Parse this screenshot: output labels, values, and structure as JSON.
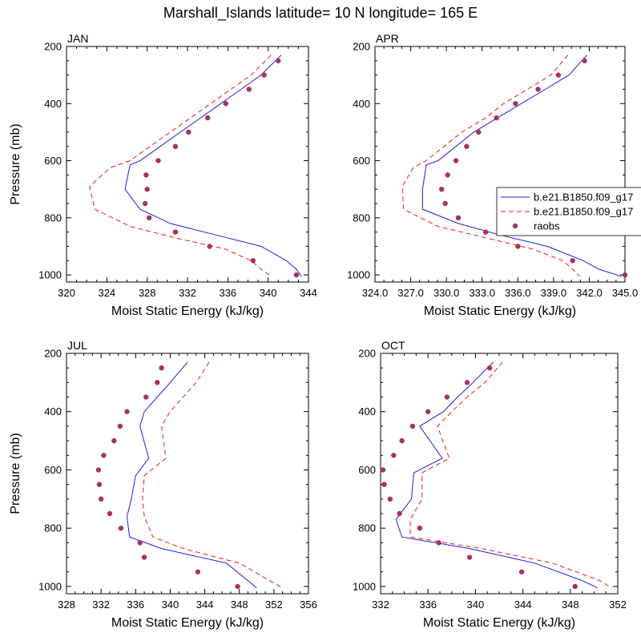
{
  "figure": {
    "title": "Marshall_Islands  latitude= 10 N longitude= 165 E"
  },
  "legend": {
    "placement": "right edge of APR panel",
    "entries": [
      {
        "label": "b.e21.B1850.f09_g17",
        "style": "solid",
        "color": "#1f1fe0"
      },
      {
        "label": "b.e21.B1850.f09_g17",
        "style": "dashed",
        "color": "#e81e1e"
      },
      {
        "label": "raobs",
        "style": "marker",
        "color": "#a8325f"
      }
    ]
  },
  "colors": {
    "model_solid": "#1f1fe0",
    "model_dashed": "#e81e1e",
    "raobs": "#a8325f"
  },
  "chart_data": [
    {
      "type": "line",
      "title": "JAN",
      "xlabel": "Moist Static Energy (kJ/kg)",
      "ylabel": "Pressure (mb)",
      "xlim": [
        320,
        344
      ],
      "ylim": [
        1025,
        200
      ],
      "xticks": [
        320,
        324,
        328,
        332,
        336,
        340,
        344
      ],
      "xtick_labels": [
        "320",
        "324",
        "328",
        "332",
        "336",
        "340",
        "344"
      ],
      "yticks": [
        200,
        400,
        600,
        800,
        1000
      ],
      "ytick_labels": [
        "200",
        "400",
        "600",
        "800",
        "1000"
      ],
      "series": [
        {
          "style": "solid",
          "x": [
            341.3,
            339.3,
            337.3,
            335.3,
            333.3,
            331.3,
            329.3,
            327.3,
            326.3,
            325.8,
            327.3,
            330.3,
            334.8,
            339.3,
            341.8,
            342.8,
            343.3
          ],
          "y": [
            230,
            300,
            350,
            400,
            450,
            500,
            550,
            600,
            615,
            700,
            770,
            820,
            860,
            900,
            950,
            980,
            1005
          ]
        },
        {
          "style": "dashed",
          "x": [
            340.3,
            338.3,
            336.3,
            334.3,
            332.3,
            330.3,
            328.3,
            326.3,
            324.3,
            322.3,
            322.8,
            326.3,
            330.8,
            335.8,
            338.3,
            339.3,
            340.3
          ],
          "y": [
            230,
            300,
            350,
            400,
            450,
            500,
            550,
            600,
            625,
            690,
            770,
            830,
            870,
            910,
            950,
            980,
            1005
          ]
        },
        {
          "style": "marker",
          "x": [
            341.0,
            339.6,
            338.1,
            335.8,
            334.0,
            332.1,
            330.8,
            329.1,
            327.9,
            328.0,
            327.8,
            328.2,
            330.8,
            334.2,
            338.5,
            342.8
          ],
          "y": [
            250,
            300,
            350,
            400,
            450,
            500,
            550,
            600,
            650,
            700,
            750,
            800,
            850,
            900,
            950,
            1000
          ]
        }
      ]
    },
    {
      "type": "line",
      "title": "APR",
      "xlabel": "Moist Static Energy (kJ/kg)",
      "ylabel": "",
      "xlim": [
        324,
        345
      ],
      "ylim": [
        1025,
        200
      ],
      "xticks": [
        324,
        327,
        330,
        333,
        336,
        339,
        342,
        345
      ],
      "xtick_labels": [
        "324.0",
        "327.0",
        "330.0",
        "333.0",
        "336.0",
        "339.0",
        "342.0",
        "345.0"
      ],
      "yticks": [
        200,
        400,
        600,
        800,
        1000
      ],
      "ytick_labels": [
        "200",
        "400",
        "600",
        "800",
        "1000"
      ],
      "series": [
        {
          "style": "solid",
          "x": [
            341.8,
            340.3,
            338.3,
            336.3,
            334.3,
            332.3,
            330.8,
            329.3,
            328.3,
            328.0,
            328.0,
            331.0,
            334.5,
            338.5,
            341.5,
            342.8,
            344.7
          ],
          "y": [
            230,
            300,
            350,
            400,
            450,
            500,
            550,
            600,
            615,
            700,
            770,
            820,
            860,
            900,
            950,
            980,
            1005
          ]
        },
        {
          "style": "dashed",
          "x": [
            340.2,
            338.8,
            336.8,
            334.8,
            333.3,
            331.3,
            329.8,
            328.3,
            327.2,
            326.3,
            326.4,
            329.3,
            333.3,
            337.3,
            339.8,
            340.6,
            341.2
          ],
          "y": [
            230,
            300,
            350,
            400,
            450,
            500,
            550,
            600,
            625,
            690,
            770,
            830,
            870,
            910,
            950,
            980,
            1005
          ]
        },
        {
          "style": "marker",
          "x": [
            341.6,
            339.4,
            337.7,
            335.8,
            334.2,
            332.7,
            331.7,
            330.8,
            330.1,
            329.6,
            329.9,
            331.0,
            333.3,
            336.0,
            340.6,
            345.0
          ],
          "y": [
            250,
            300,
            350,
            400,
            450,
            500,
            550,
            600,
            650,
            700,
            750,
            800,
            850,
            900,
            950,
            1000
          ]
        }
      ]
    },
    {
      "type": "line",
      "title": "JUL",
      "xlabel": "Moist Static Energy (kJ/kg)",
      "ylabel": "Pressure (mb)",
      "xlim": [
        328,
        356
      ],
      "ylim": [
        1025,
        200
      ],
      "xticks": [
        328,
        332,
        336,
        340,
        344,
        348,
        352,
        356
      ],
      "xtick_labels": [
        "328",
        "332",
        "336",
        "340",
        "344",
        "348",
        "352",
        "356"
      ],
      "yticks": [
        200,
        400,
        600,
        800,
        1000
      ],
      "ytick_labels": [
        "200",
        "400",
        "600",
        "800",
        "1000"
      ],
      "series": [
        {
          "style": "solid",
          "x": [
            342.0,
            340.0,
            338.5,
            337.0,
            336.5,
            337.5,
            336.0,
            335.5,
            335.0,
            335.3,
            339.0,
            346.5,
            349.0,
            350.0
          ],
          "y": [
            230,
            300,
            350,
            400,
            450,
            560,
            620,
            700,
            760,
            830,
            870,
            920,
            980,
            1005
          ]
        },
        {
          "style": "dashed",
          "x": [
            344.5,
            343.0,
            341.5,
            340.0,
            339.0,
            339.5,
            337.0,
            336.8,
            337.0,
            338.0,
            341.5,
            348.0,
            351.5,
            353.0
          ],
          "y": [
            230,
            300,
            350,
            400,
            450,
            560,
            620,
            700,
            760,
            830,
            870,
            920,
            980,
            1005
          ]
        },
        {
          "style": "marker",
          "x": [
            339.0,
            338.5,
            337.2,
            335.0,
            334.2,
            333.5,
            332.3,
            331.7,
            331.8,
            332.0,
            333.0,
            334.3,
            336.5,
            337.0,
            343.2,
            347.8
          ],
          "y": [
            250,
            300,
            350,
            400,
            450,
            500,
            550,
            600,
            650,
            700,
            750,
            800,
            850,
            900,
            950,
            1000
          ]
        }
      ]
    },
    {
      "type": "line",
      "title": "OCT",
      "xlabel": "Moist Static Energy (kJ/kg)",
      "ylabel": "",
      "xlim": [
        332,
        352
      ],
      "ylim": [
        1025,
        200
      ],
      "xticks": [
        332,
        336,
        340,
        344,
        348,
        352
      ],
      "xtick_labels": [
        "332",
        "336",
        "340",
        "344",
        "348",
        "352"
      ],
      "yticks": [
        200,
        400,
        600,
        800,
        1000
      ],
      "ytick_labels": [
        "200",
        "400",
        "600",
        "800",
        "1000"
      ],
      "series": [
        {
          "style": "solid",
          "x": [
            341.5,
            339.8,
            338.5,
            337.3,
            335.3,
            337.2,
            334.8,
            334.6,
            333.3,
            333.8,
            339.5,
            345.0,
            349.0,
            350.3
          ],
          "y": [
            230,
            300,
            350,
            400,
            450,
            560,
            610,
            700,
            770,
            830,
            870,
            920,
            980,
            1005
          ]
        },
        {
          "style": "dashed",
          "x": [
            342.3,
            340.8,
            339.3,
            338.0,
            336.8,
            337.8,
            335.5,
            335.5,
            334.5,
            334.5,
            340.5,
            346.5,
            350.5,
            351.5
          ],
          "y": [
            230,
            300,
            350,
            400,
            450,
            560,
            610,
            700,
            770,
            830,
            870,
            920,
            980,
            1005
          ]
        },
        {
          "style": "marker",
          "x": [
            341.2,
            339.3,
            337.6,
            336.0,
            334.7,
            333.8,
            333.1,
            332.2,
            332.3,
            332.8,
            333.6,
            335.3,
            336.9,
            339.5,
            343.9,
            348.4
          ],
          "y": [
            250,
            300,
            350,
            400,
            450,
            500,
            550,
            600,
            650,
            700,
            750,
            800,
            850,
            900,
            950,
            1000
          ]
        }
      ]
    }
  ]
}
